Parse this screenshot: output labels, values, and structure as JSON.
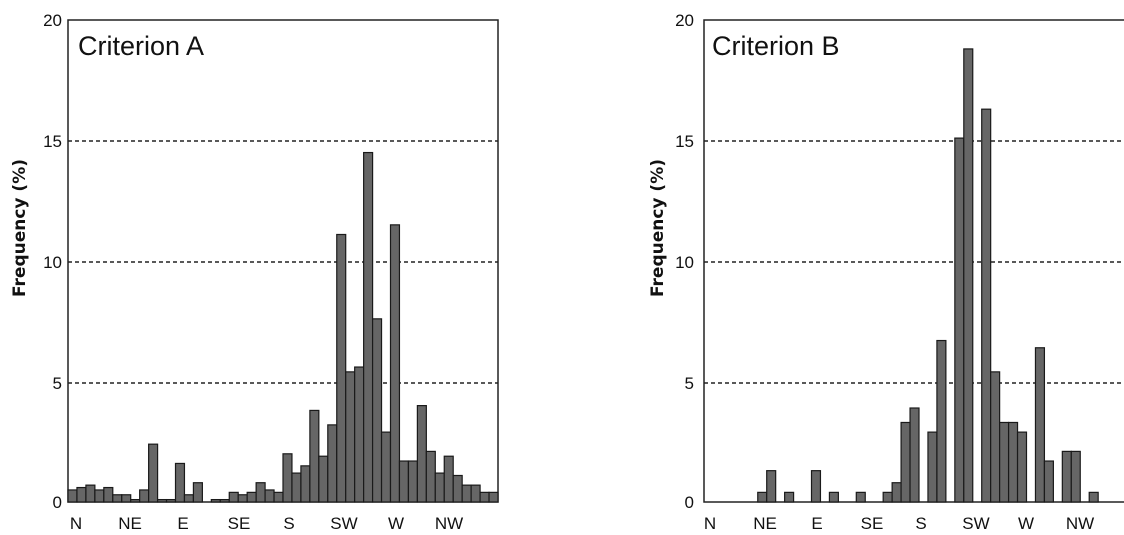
{
  "chart_data": [
    {
      "type": "bar",
      "title": "Criterion A",
      "xlabel": "",
      "ylabel": "Frequency (%)",
      "ylim": [
        0,
        20
      ],
      "yticks": [
        "0",
        "5",
        "10",
        "15",
        "20"
      ],
      "grid": "dashed horizontal at 5, 10, 15",
      "xtick_labels": [
        "N",
        "NE",
        "E",
        "SE",
        "S",
        "SW",
        "W",
        "NW"
      ],
      "bin_count": 48,
      "values": [
        0.5,
        0.6,
        0.7,
        0.5,
        0.6,
        0.3,
        0.3,
        0.1,
        0.5,
        2.4,
        0.1,
        0.1,
        1.6,
        0.3,
        0.8,
        0.0,
        0.1,
        0.1,
        0.4,
        0.3,
        0.4,
        0.8,
        0.5,
        0.4,
        2.0,
        1.2,
        1.5,
        3.8,
        1.9,
        3.2,
        11.1,
        5.4,
        5.6,
        14.5,
        7.6,
        2.9,
        11.5,
        1.7,
        1.7,
        4.0,
        2.1,
        1.2,
        1.9,
        1.1,
        0.7,
        0.7,
        0.4,
        0.4
      ]
    },
    {
      "type": "bar",
      "title": "Criterion B",
      "xlabel": "",
      "ylabel": "Frequency (%)",
      "ylim": [
        0,
        20
      ],
      "yticks": [
        "0",
        "5",
        "10",
        "15",
        "20"
      ],
      "grid": "dashed horizontal at 5, 10, 15",
      "xtick_labels": [
        "N",
        "NE",
        "E",
        "SE",
        "S",
        "SW",
        "W",
        "NW"
      ],
      "bin_count": 48,
      "values": [
        0,
        0,
        0,
        0,
        0,
        0,
        0.4,
        1.3,
        0,
        0.4,
        0,
        0,
        1.3,
        0,
        0.4,
        0,
        0,
        0.4,
        0,
        0,
        0.4,
        0.8,
        3.3,
        3.9,
        0,
        2.9,
        6.7,
        0,
        15.1,
        18.8,
        0,
        16.3,
        5.4,
        3.3,
        3.3,
        2.9,
        0,
        6.4,
        1.7,
        0,
        2.1,
        2.1,
        0,
        0.4,
        0,
        0,
        0,
        0
      ]
    }
  ]
}
